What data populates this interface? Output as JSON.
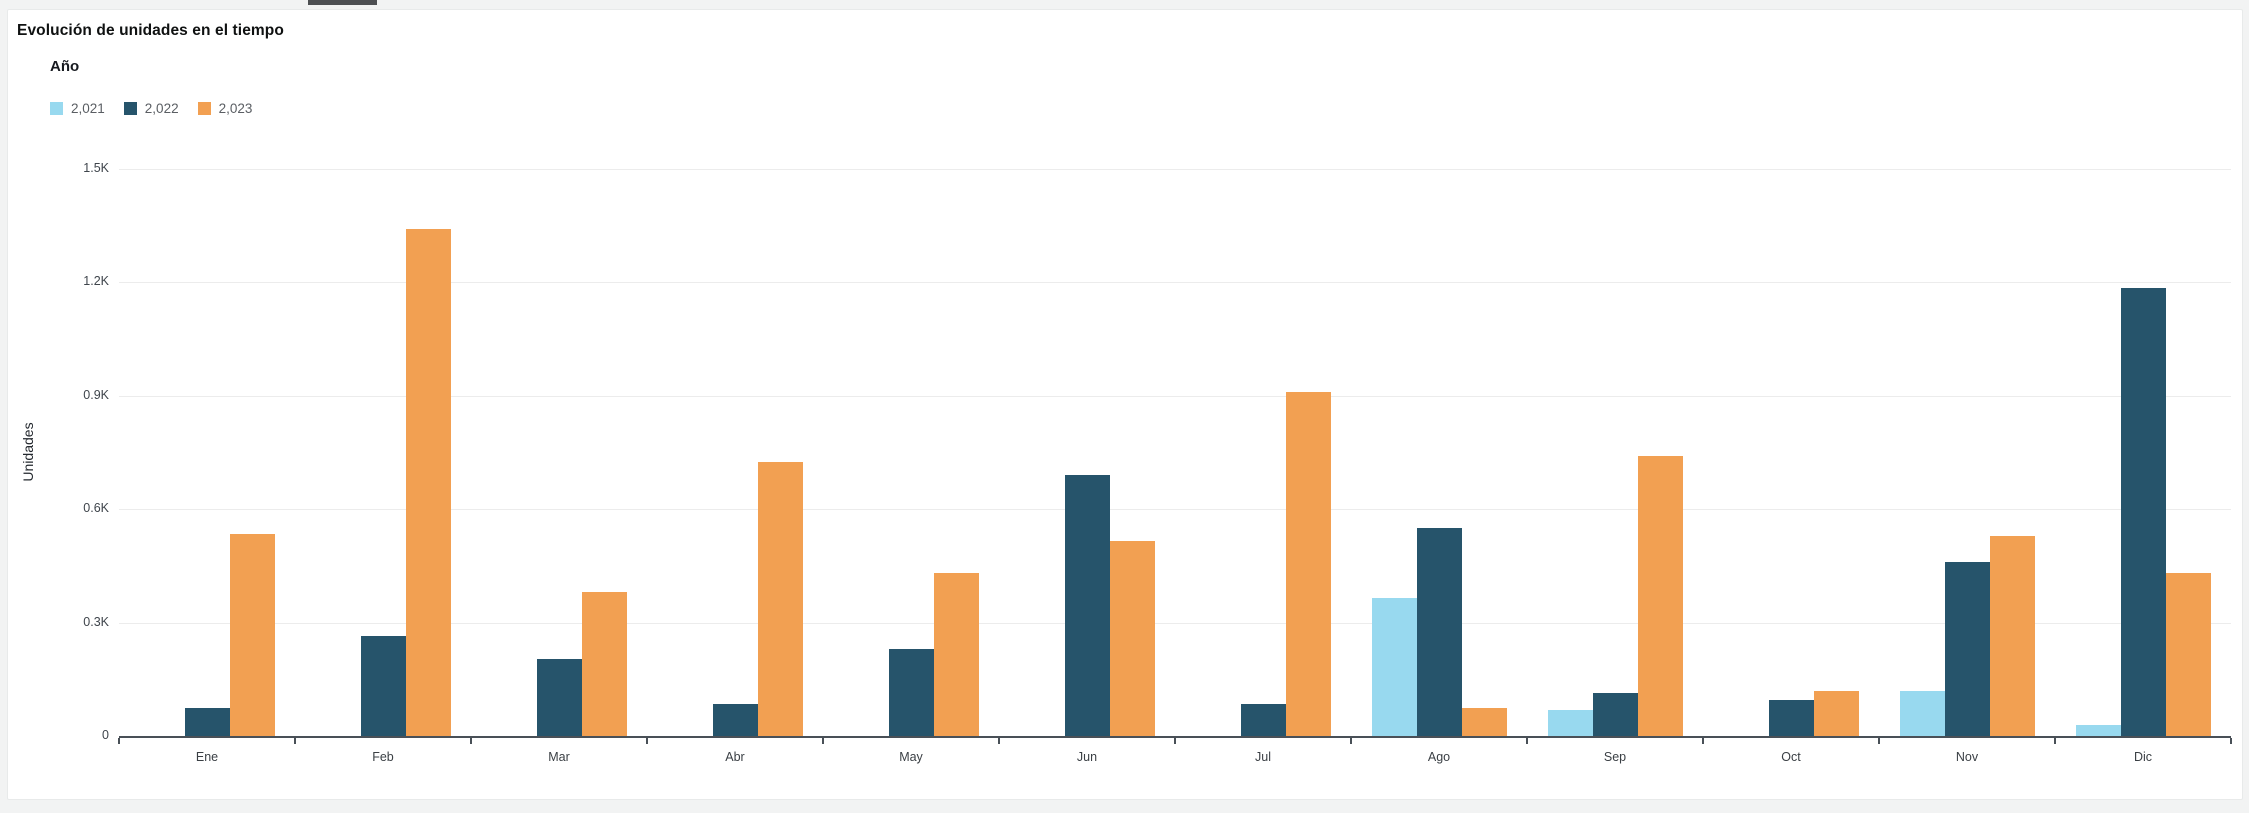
{
  "page": {
    "background": "#f2f3f3"
  },
  "top_tab": {
    "color": "#4d4f52"
  },
  "card": {
    "background": "#ffffff",
    "border_color": "#e8eaea"
  },
  "chart_data": {
    "type": "bar",
    "title": "Evolución de unidades en el tiempo",
    "legend_title": "Año",
    "ylabel": "Unidades",
    "xlabel": "",
    "grid": true,
    "legend_position": "top-left",
    "categories": [
      "Ene",
      "Feb",
      "Mar",
      "Abr",
      "May",
      "Jun",
      "Jul",
      "Ago",
      "Sep",
      "Oct",
      "Nov",
      "Dic"
    ],
    "series": [
      {
        "name": "2,021",
        "color": "#98d9ef",
        "values": [
          0,
          0,
          0,
          0,
          0,
          0,
          0,
          365,
          70,
          0,
          120,
          30
        ]
      },
      {
        "name": "2,022",
        "color": "#26546b",
        "values": [
          75,
          265,
          205,
          85,
          230,
          690,
          85,
          550,
          115,
          95,
          460,
          1185
        ]
      },
      {
        "name": "2,023",
        "color": "#f2a052",
        "values": [
          535,
          1340,
          380,
          725,
          430,
          515,
          910,
          75,
          740,
          120,
          530,
          430
        ]
      }
    ],
    "ylim": [
      0,
      1500
    ],
    "yticks": [
      {
        "value": 0,
        "label": "0"
      },
      {
        "value": 300,
        "label": "0.3K"
      },
      {
        "value": 600,
        "label": "0.6K"
      },
      {
        "value": 900,
        "label": "0.9K"
      },
      {
        "value": 1200,
        "label": "1.2K"
      },
      {
        "value": 1500,
        "label": "1.5K"
      }
    ]
  },
  "colors": {
    "axis_line": "#495057",
    "gridline": "#ececec",
    "tick_label": "#3f454c",
    "legend_text": "#5a5e63",
    "title_text": "#0f1111"
  }
}
